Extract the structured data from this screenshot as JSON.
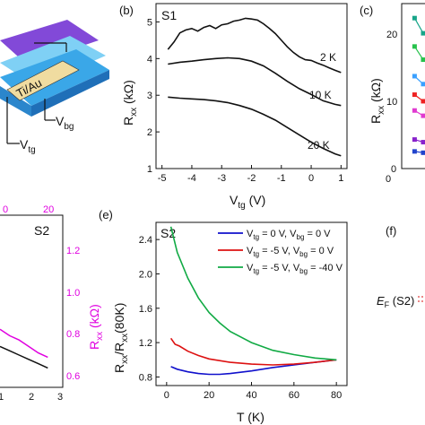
{
  "panel_labels": {
    "b": "(b)",
    "c": "(c)",
    "e": "(e)",
    "f": "(f)"
  },
  "schematic": {
    "ti_au": "Ti/Au",
    "vbg": "V",
    "vbg_sub": "bg",
    "vtg": "V",
    "vtg_sub": "tg"
  },
  "panel_b": {
    "sample": "S1",
    "xlabel": "V",
    "xlabel_sub": "tg",
    "xlabel_unit": " (V)",
    "ylabel": "R",
    "ylabel_sub": "xx",
    "ylabel_unit": " (kΩ)",
    "annotations": [
      "2 K",
      "10 K",
      "20 K"
    ]
  },
  "panel_c": {
    "ylabel": "R",
    "ylabel_sub": "xx",
    "ylabel_unit": " (kΩ)",
    "yticks": [
      "20",
      "10",
      "0"
    ],
    "xticks": [
      "0"
    ]
  },
  "panel_d": {
    "sample": "S2",
    "top_ticks": [
      "0",
      "20"
    ],
    "bottom_ticks": [
      "1",
      "2",
      "3"
    ],
    "right_ticks": [
      "1.2",
      "1.0",
      "0.8",
      "0.6"
    ],
    "ylabel": "R",
    "ylabel_sub": "xx",
    "ylabel_unit": " (kΩ)",
    "accent": "#e000e0"
  },
  "panel_e": {
    "sample": "S2",
    "xlabel": "T (K)",
    "ylabel": "R",
    "ylabel_sub1": "xx",
    "ylabel_mid": "/R",
    "ylabel_sub2": "xx",
    "ylabel_end": "(80K)",
    "legend": [
      {
        "a": "V",
        "as": "tg",
        "b": " = 0 V, V",
        "bs": "bg",
        "c": " = 0 V",
        "color": "#1010cc"
      },
      {
        "a": "V",
        "as": "tg",
        "b": " = -5 V, V",
        "bs": "bg",
        "c": " = 0 V",
        "color": "#dd1111"
      },
      {
        "a": "V",
        "as": "tg",
        "b": " = -5 V, V",
        "bs": "bg",
        "c": " = -40 V",
        "color": "#11aa44"
      }
    ]
  },
  "panel_f": {
    "ef": "E",
    "ef_sub": "F",
    "ef_rest": " (S2)"
  },
  "chart_data": [
    {
      "type": "line",
      "panel": "b",
      "title": "",
      "xlabel": "Vtg (V)",
      "ylabel": "Rxx (kΩ)",
      "xlim": [
        -5.2,
        1.2
      ],
      "ylim": [
        1,
        5.5
      ],
      "xticks": [
        -5,
        -4,
        -3,
        -2,
        -1,
        0,
        1
      ],
      "yticks": [
        1,
        2,
        3,
        4,
        5
      ],
      "series": [
        {
          "name": "2 K",
          "x": [
            -4.8,
            -4.6,
            -4.4,
            -4.2,
            -4,
            -3.8,
            -3.6,
            -3.4,
            -3.2,
            -3,
            -2.8,
            -2.6,
            -2.4,
            -2.2,
            -2,
            -1.8,
            -1.6,
            -1.4,
            -1.2,
            -1,
            -0.8,
            -0.6,
            -0.4,
            -0.2,
            0,
            0.2,
            0.4,
            0.6,
            0.8,
            1
          ],
          "y": [
            4.25,
            4.45,
            4.7,
            4.78,
            4.82,
            4.75,
            4.85,
            4.9,
            4.82,
            4.92,
            4.95,
            5.02,
            5.05,
            5.1,
            5.08,
            5.05,
            4.95,
            4.82,
            4.68,
            4.5,
            4.32,
            4.17,
            4.05,
            3.97,
            3.95,
            3.88,
            3.82,
            3.75,
            3.68,
            3.62
          ]
        },
        {
          "name": "10 K",
          "x": [
            -4.8,
            -4.4,
            -4,
            -3.6,
            -3.2,
            -2.8,
            -2.4,
            -2,
            -1.6,
            -1.2,
            -0.8,
            -0.4,
            0,
            0.4,
            0.8,
            1
          ],
          "y": [
            3.85,
            3.9,
            3.93,
            3.97,
            4.0,
            4.02,
            4.0,
            3.93,
            3.8,
            3.6,
            3.38,
            3.18,
            3.02,
            2.85,
            2.75,
            2.72
          ]
        },
        {
          "name": "20 K",
          "x": [
            -4.8,
            -4.4,
            -4,
            -3.6,
            -3.2,
            -2.8,
            -2.4,
            -2,
            -1.6,
            -1.2,
            -0.8,
            -0.4,
            0,
            0.4,
            0.8,
            1
          ],
          "y": [
            2.95,
            2.92,
            2.9,
            2.88,
            2.85,
            2.8,
            2.72,
            2.62,
            2.48,
            2.32,
            2.12,
            1.92,
            1.72,
            1.55,
            1.4,
            1.35
          ]
        }
      ]
    },
    {
      "type": "line",
      "panel": "e",
      "title": "",
      "xlabel": "T (K)",
      "ylabel": "Rxx/Rxx(80K)",
      "xlim": [
        -5,
        85
      ],
      "ylim": [
        0.7,
        2.6
      ],
      "xticks": [
        0,
        20,
        40,
        60,
        80
      ],
      "yticks": [
        0.8,
        1.2,
        1.6,
        2.0,
        2.4
      ],
      "series": [
        {
          "name": "Vtg = 0 V, Vbg = 0 V",
          "x": [
            2,
            5,
            10,
            15,
            20,
            25,
            30,
            40,
            50,
            60,
            70,
            80
          ],
          "y": [
            0.92,
            0.89,
            0.86,
            0.84,
            0.83,
            0.83,
            0.84,
            0.87,
            0.91,
            0.94,
            0.97,
            1.0
          ]
        },
        {
          "name": "Vtg = -5 V, Vbg = 0 V",
          "x": [
            2,
            4,
            6,
            10,
            15,
            20,
            30,
            40,
            50,
            60,
            70,
            80
          ],
          "y": [
            1.25,
            1.18,
            1.16,
            1.1,
            1.05,
            1.01,
            0.97,
            0.95,
            0.94,
            0.95,
            0.97,
            1.0
          ]
        },
        {
          "name": "Vtg = -5 V, Vbg = -40 V",
          "x": [
            2,
            5,
            10,
            15,
            20,
            25,
            30,
            40,
            50,
            60,
            70,
            80
          ],
          "y": [
            2.55,
            2.25,
            1.95,
            1.72,
            1.55,
            1.43,
            1.33,
            1.2,
            1.11,
            1.06,
            1.02,
            1.0
          ]
        }
      ]
    },
    {
      "type": "line",
      "panel": "d",
      "title": "",
      "series": [
        {
          "name": "magenta",
          "color": "#e000e0",
          "x": [
            0,
            0.4,
            0.8,
            1.2,
            1.6,
            2.0
          ],
          "y": [
            0.82,
            0.79,
            0.77,
            0.74,
            0.71,
            0.69
          ]
        },
        {
          "name": "black",
          "color": "#111111",
          "x": [
            0,
            0.4,
            0.8,
            1.2,
            1.6,
            2.0
          ],
          "y": [
            0.74,
            0.72,
            0.7,
            0.68,
            0.66,
            0.64
          ]
        }
      ],
      "xlim": [
        0,
        3
      ],
      "ylim": [
        0.55,
        1.35
      ]
    },
    {
      "type": "scatter",
      "panel": "c",
      "title": "",
      "ylim": [
        0,
        25
      ],
      "series": [
        {
          "name": "s1",
          "color": "#17a589",
          "x": [
            0.9,
            1.5
          ],
          "y": [
            22.8,
            20.5
          ]
        },
        {
          "name": "s2",
          "color": "#27c24c",
          "x": [
            0.9,
            1.5
          ],
          "y": [
            18.5,
            16.5
          ]
        },
        {
          "name": "s3",
          "color": "#3aa0ff",
          "x": [
            0.9,
            1.5
          ],
          "y": [
            14.0,
            12.8
          ]
        },
        {
          "name": "s4",
          "color": "#ee2222",
          "x": [
            0.9,
            1.5
          ],
          "y": [
            11.2,
            10.2
          ]
        },
        {
          "name": "s5",
          "color": "#e03ad0",
          "x": [
            0.9,
            1.5
          ],
          "y": [
            8.8,
            8.0
          ]
        },
        {
          "name": "s6",
          "color": "#8822cc",
          "x": [
            0.9,
            1.5
          ],
          "y": [
            4.4,
            4.0
          ]
        },
        {
          "name": "s7",
          "color": "#2244cc",
          "x": [
            0.9,
            1.5
          ],
          "y": [
            2.6,
            2.4
          ]
        }
      ]
    }
  ]
}
